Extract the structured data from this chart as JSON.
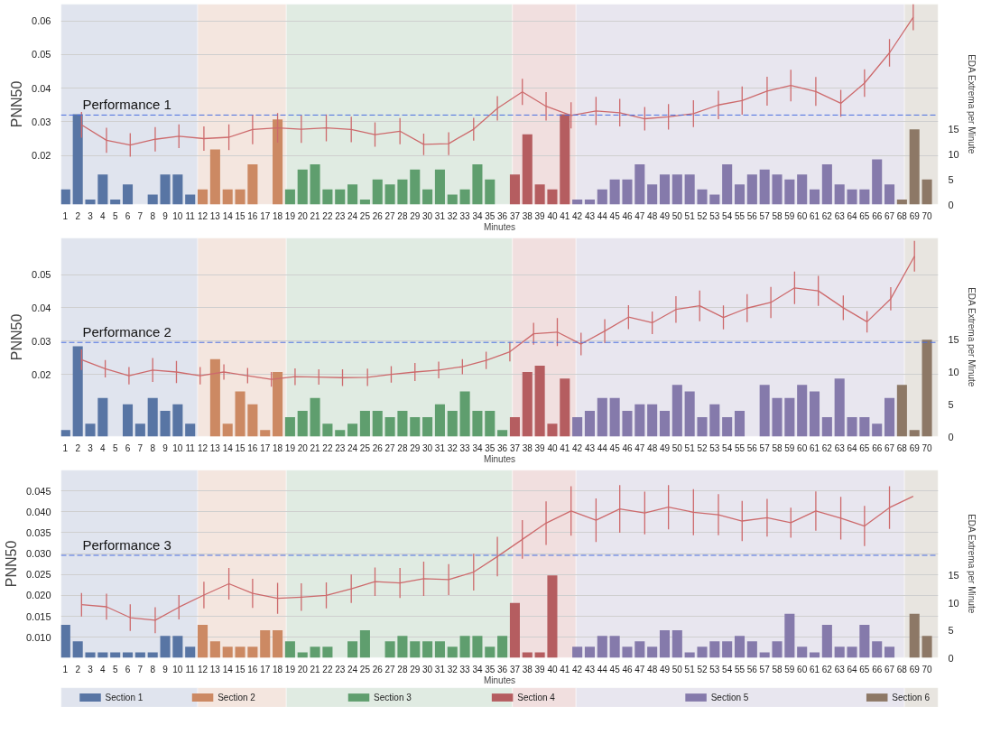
{
  "chart_data": [
    {
      "type": "bar",
      "xlabel": "Minutes",
      "ylabel": "PNN50",
      "y2label": "EDA Extrema per Minute",
      "xlim": [
        0.65,
        70.9
      ],
      "xticks": [
        1,
        2,
        3,
        4,
        5,
        6,
        7,
        8,
        9,
        10,
        11,
        12,
        13,
        14,
        15,
        16,
        17,
        18,
        19,
        20,
        21,
        22,
        23,
        24,
        25,
        26,
        27,
        28,
        29,
        30,
        31,
        32,
        33,
        34,
        35,
        36,
        37,
        38,
        39,
        40,
        41,
        42,
        43,
        44,
        45,
        46,
        47,
        48,
        49,
        50,
        51,
        52,
        53,
        54,
        55,
        56,
        57,
        58,
        59,
        60,
        61,
        62,
        63,
        64,
        65,
        66,
        67,
        68,
        69,
        70
      ],
      "ylim": [
        0.0054,
        0.065
      ],
      "yticks": [
        0.02,
        0.03,
        0.04,
        0.05,
        0.06
      ],
      "y2lim": [
        0,
        40
      ],
      "y2ticks": [
        0,
        5,
        10,
        15
      ],
      "grid": "y",
      "legend": false,
      "bands": [
        {
          "axis": "x",
          "from": 0.65,
          "to": 11.6,
          "color": "#e0e4ee"
        },
        {
          "axis": "x",
          "from": 11.6,
          "to": 18.7,
          "color": "#f4e6df"
        },
        {
          "axis": "x",
          "from": 18.7,
          "to": 36.8,
          "color": "#e0ebe2"
        },
        {
          "axis": "x",
          "from": 36.8,
          "to": 41.9,
          "color": "#f1dfdf"
        },
        {
          "axis": "x",
          "from": 41.9,
          "to": 68.2,
          "color": "#e8e6ef"
        },
        {
          "axis": "x",
          "from": 68.2,
          "to": 70.9,
          "color": "#e8e5e0"
        }
      ],
      "ref_lines": [
        {
          "axis": "y",
          "value": 0.032,
          "label": "Performance 1",
          "color": "#4a6ee0",
          "line_style": "dashed"
        }
      ],
      "series": [
        {
          "axis": "y2",
          "color": "#5875a4",
          "x": [
            1,
            2,
            3,
            4,
            5,
            6,
            7,
            8,
            9,
            10,
            11
          ],
          "values": [
            3,
            18,
            1,
            6,
            1,
            4,
            0,
            2,
            6,
            6,
            2
          ]
        },
        {
          "axis": "y2",
          "color": "#cc8963",
          "x": [
            12,
            13,
            14,
            15,
            16,
            17,
            18
          ],
          "values": [
            3,
            11,
            3,
            3,
            8,
            0,
            17
          ]
        },
        {
          "axis": "y2",
          "color": "#5f9e6e",
          "x": [
            19,
            20,
            21,
            22,
            23,
            24,
            25,
            26,
            27,
            28,
            29,
            30,
            31,
            32,
            33,
            34,
            35,
            36
          ],
          "values": [
            3,
            7,
            8,
            3,
            3,
            4,
            1,
            5,
            4,
            5,
            7,
            3,
            7,
            2,
            3,
            8,
            5,
            0
          ]
        },
        {
          "axis": "y2",
          "color": "#b55d60",
          "x": [
            37,
            38,
            39,
            40,
            41
          ],
          "values": [
            6,
            14,
            4,
            3,
            18
          ]
        },
        {
          "axis": "y2",
          "color": "#857aab",
          "x": [
            42,
            43,
            44,
            45,
            46,
            47,
            48,
            49,
            50,
            51,
            52,
            53,
            54,
            55,
            56,
            57,
            58,
            59,
            60,
            61,
            62,
            63,
            64,
            65,
            66,
            67
          ],
          "values": [
            1,
            1,
            3,
            5,
            5,
            8,
            4,
            6,
            6,
            6,
            3,
            2,
            8,
            4,
            6,
            7,
            6,
            5,
            6,
            3,
            8,
            4,
            3,
            3,
            9,
            4
          ]
        },
        {
          "axis": "y2",
          "color": "#8d7866",
          "x": [
            68,
            69,
            70
          ],
          "values": [
            1,
            15,
            5
          ]
        },
        {
          "type": "line",
          "axis": "y",
          "color": "#cd6a6c",
          "marker": "none",
          "line_style": "solid",
          "x": [
            2.3,
            4.3,
            6.2,
            8.2,
            10.1,
            12.1,
            14.1,
            16.0,
            18.0,
            19.9,
            21.9,
            23.9,
            25.8,
            27.8,
            29.7,
            31.7,
            33.7,
            35.6,
            37.6,
            39.5,
            41.5,
            43.5,
            45.4,
            47.4,
            49.3,
            51.3,
            53.3,
            55.2,
            57.2,
            59.1,
            61.1,
            63.1,
            65.0,
            67.0,
            68.9
          ],
          "values": [
            0.0291,
            0.0245,
            0.0231,
            0.0248,
            0.0257,
            0.025,
            0.0254,
            0.0277,
            0.0282,
            0.0278,
            0.0282,
            0.0277,
            0.0262,
            0.0272,
            0.0233,
            0.0235,
            0.0278,
            0.034,
            0.0389,
            0.0346,
            0.0319,
            0.0332,
            0.0327,
            0.0309,
            0.0315,
            0.0324,
            0.035,
            0.0363,
            0.0391,
            0.0408,
            0.039,
            0.0355,
            0.0415,
            0.0505,
            0.0611
          ],
          "errors": [
            0.0038,
            0.0037,
            0.0035,
            0.0036,
            0.0035,
            0.0036,
            0.0038,
            0.0044,
            0.0044,
            0.0041,
            0.004,
            0.0038,
            0.0036,
            0.0039,
            0.0032,
            0.0034,
            0.0034,
            0.0036,
            0.0039,
            0.0042,
            0.0039,
            0.0042,
            0.0041,
            0.0035,
            0.0038,
            0.004,
            0.0042,
            0.0042,
            0.0043,
            0.0047,
            0.0043,
            0.004,
            0.0041,
            0.0041,
            0.0039
          ]
        }
      ]
    },
    {
      "type": "bar",
      "xlabel": "Minutes",
      "ylabel": "PNN50",
      "y2label": "EDA Extrema per Minute",
      "xlim": [
        0.65,
        70.9
      ],
      "xticks": [
        1,
        2,
        3,
        4,
        5,
        6,
        7,
        8,
        9,
        10,
        11,
        12,
        13,
        14,
        15,
        16,
        17,
        18,
        19,
        20,
        21,
        22,
        23,
        24,
        25,
        26,
        27,
        28,
        29,
        30,
        31,
        32,
        33,
        34,
        35,
        36,
        37,
        38,
        39,
        40,
        41,
        42,
        43,
        44,
        45,
        46,
        47,
        48,
        49,
        50,
        51,
        52,
        53,
        54,
        55,
        56,
        57,
        58,
        59,
        60,
        61,
        62,
        63,
        64,
        65,
        66,
        67,
        68,
        69,
        70
      ],
      "ylim": [
        0.0013,
        0.061
      ],
      "yticks": [
        0.02,
        0.03,
        0.04,
        0.05
      ],
      "y2lim": [
        0,
        30.8
      ],
      "y2ticks": [
        0,
        5,
        10,
        15
      ],
      "grid": "y",
      "legend": false,
      "bands": [
        {
          "axis": "x",
          "from": 0.65,
          "to": 11.6,
          "color": "#e0e4ee"
        },
        {
          "axis": "x",
          "from": 11.6,
          "to": 18.7,
          "color": "#f4e6df"
        },
        {
          "axis": "x",
          "from": 18.7,
          "to": 36.8,
          "color": "#e0ebe2"
        },
        {
          "axis": "x",
          "from": 36.8,
          "to": 41.9,
          "color": "#f1dfdf"
        },
        {
          "axis": "x",
          "from": 41.9,
          "to": 68.2,
          "color": "#e8e6ef"
        },
        {
          "axis": "x",
          "from": 68.2,
          "to": 70.9,
          "color": "#e8e5e0"
        }
      ],
      "ref_lines": [
        {
          "axis": "y",
          "value": 0.0296,
          "label": "Performance 2",
          "color": "#4a6ee0",
          "line_style": "dashed"
        }
      ],
      "series": [
        {
          "axis": "y2",
          "color": "#5875a4",
          "x": [
            1,
            2,
            3,
            4,
            5,
            6,
            7,
            8,
            9,
            10,
            11
          ],
          "values": [
            1,
            14,
            2,
            6,
            0,
            5,
            2,
            6,
            4,
            5,
            2
          ]
        },
        {
          "axis": "y2",
          "color": "#cc8963",
          "x": [
            12,
            13,
            14,
            15,
            16,
            17,
            18
          ],
          "values": [
            0,
            12,
            2,
            7,
            5,
            1,
            10
          ]
        },
        {
          "axis": "y2",
          "color": "#5f9e6e",
          "x": [
            19,
            20,
            21,
            22,
            23,
            24,
            25,
            26,
            27,
            28,
            29,
            30,
            31,
            32,
            33,
            34,
            35,
            36
          ],
          "values": [
            3,
            4,
            6,
            2,
            1,
            2,
            4,
            4,
            3,
            4,
            3,
            3,
            5,
            4,
            7,
            4,
            4,
            1
          ]
        },
        {
          "axis": "y2",
          "color": "#b55d60",
          "x": [
            37,
            38,
            39,
            40,
            41
          ],
          "values": [
            3,
            10,
            11,
            2,
            9
          ]
        },
        {
          "axis": "y2",
          "color": "#857aab",
          "x": [
            42,
            43,
            44,
            45,
            46,
            47,
            48,
            49,
            50,
            51,
            52,
            53,
            54,
            55,
            56,
            57,
            58,
            59,
            60,
            61,
            62,
            63,
            64,
            65,
            66,
            67
          ],
          "values": [
            3,
            4,
            6,
            6,
            4,
            5,
            5,
            4,
            8,
            7,
            3,
            5,
            3,
            4,
            0,
            8,
            6,
            6,
            8,
            7,
            3,
            9,
            3,
            3,
            2,
            6
          ]
        },
        {
          "axis": "y2",
          "color": "#8d7866",
          "x": [
            68,
            69,
            70
          ],
          "values": [
            8,
            1,
            15
          ]
        },
        {
          "type": "line",
          "axis": "y",
          "color": "#cd6a6c",
          "marker": "none",
          "line_style": "solid",
          "x": [
            2.3,
            4.2,
            6.1,
            8.0,
            9.9,
            11.8,
            13.7,
            15.6,
            17.5,
            19.4,
            21.3,
            23.2,
            25.2,
            27.1,
            29.0,
            30.9,
            32.8,
            34.7,
            36.6,
            38.5,
            40.4,
            42.3,
            44.2,
            46.1,
            48.0,
            49.9,
            51.8,
            53.7,
            55.6,
            57.5,
            59.4,
            61.3,
            63.3,
            65.2,
            67.1,
            69.0
          ],
          "values": [
            0.0244,
            0.0217,
            0.0196,
            0.0213,
            0.0207,
            0.0196,
            0.0207,
            0.0196,
            0.0185,
            0.0193,
            0.0192,
            0.019,
            0.0191,
            0.02,
            0.0207,
            0.0213,
            0.0223,
            0.0242,
            0.0268,
            0.0322,
            0.0327,
            0.0291,
            0.033,
            0.0372,
            0.0355,
            0.0395,
            0.0406,
            0.0371,
            0.0399,
            0.0416,
            0.046,
            0.0451,
            0.04,
            0.0358,
            0.0427,
            0.0555
          ],
          "errors": [
            0.0031,
            0.0026,
            0.0026,
            0.0036,
            0.0033,
            0.0026,
            0.0023,
            0.0023,
            0.0022,
            0.0025,
            0.0023,
            0.0025,
            0.0026,
            0.0025,
            0.0027,
            0.0025,
            0.0023,
            0.0026,
            0.0029,
            0.0033,
            0.0042,
            0.0034,
            0.0036,
            0.0036,
            0.0034,
            0.004,
            0.0046,
            0.0036,
            0.0042,
            0.0047,
            0.0049,
            0.0045,
            0.0037,
            0.0032,
            0.0035,
            0.0046
          ]
        }
      ]
    },
    {
      "type": "bar",
      "xlabel": "Minutes",
      "ylabel": "PNN50",
      "y2label": "EDA Extrema per Minute",
      "xlim": [
        0.65,
        70.9
      ],
      "xticks": [
        1,
        2,
        3,
        4,
        5,
        6,
        7,
        8,
        9,
        10,
        11,
        12,
        13,
        14,
        15,
        16,
        17,
        18,
        19,
        20,
        21,
        22,
        23,
        24,
        25,
        26,
        27,
        28,
        29,
        30,
        31,
        32,
        33,
        34,
        35,
        36,
        37,
        38,
        39,
        40,
        41,
        42,
        43,
        44,
        45,
        46,
        47,
        48,
        49,
        50,
        51,
        52,
        53,
        54,
        55,
        56,
        57,
        58,
        59,
        60,
        61,
        62,
        63,
        64,
        65,
        66,
        67,
        68,
        69,
        70
      ],
      "ylim": [
        0.0051,
        0.05
      ],
      "yticks": [
        {
          "value": 0.01,
          "label": "0.010"
        },
        {
          "value": 0.015,
          "label": "0.015"
        },
        {
          "value": 0.02,
          "label": "0.020"
        },
        {
          "value": 0.025,
          "label": "0.025"
        },
        {
          "value": 0.03,
          "label": "0.030"
        },
        {
          "value": 0.035,
          "label": "0.035"
        },
        {
          "value": 0.04,
          "label": "0.040"
        },
        {
          "value": 0.045,
          "label": "0.045"
        }
      ],
      "y2lim": [
        0,
        34.2
      ],
      "y2ticks": [
        0,
        5,
        10,
        15
      ],
      "grid": "y",
      "legend": "bottom",
      "bands": [
        {
          "axis": "x",
          "from": 0.65,
          "to": 11.6,
          "color": "#e0e4ee"
        },
        {
          "axis": "x",
          "from": 11.6,
          "to": 18.7,
          "color": "#f4e6df"
        },
        {
          "axis": "x",
          "from": 18.7,
          "to": 36.8,
          "color": "#e0ebe2"
        },
        {
          "axis": "x",
          "from": 36.8,
          "to": 41.9,
          "color": "#f1dfdf"
        },
        {
          "axis": "x",
          "from": 41.9,
          "to": 68.2,
          "color": "#e8e6ef"
        },
        {
          "axis": "x",
          "from": 68.2,
          "to": 70.9,
          "color": "#e8e5e0"
        }
      ],
      "ref_lines": [
        {
          "axis": "y",
          "value": 0.0296,
          "label": "Performance 3",
          "color": "#4a6ee0",
          "line_style": "dashed"
        }
      ],
      "series": [
        {
          "axis": "y2",
          "name": "Section 1",
          "color": "#5875a4",
          "x": [
            1,
            2,
            3,
            4,
            5,
            6,
            7,
            8,
            9,
            10,
            11
          ],
          "values": [
            6,
            3,
            1,
            1,
            1,
            1,
            1,
            1,
            4,
            4,
            2
          ]
        },
        {
          "axis": "y2",
          "name": "Section 2",
          "color": "#cc8963",
          "x": [
            12,
            13,
            14,
            15,
            16,
            17,
            18
          ],
          "values": [
            6,
            3,
            2,
            2,
            2,
            5,
            5
          ]
        },
        {
          "axis": "y2",
          "name": "Section 3",
          "color": "#5f9e6e",
          "x": [
            19,
            20,
            21,
            22,
            23,
            24,
            25,
            26,
            27,
            28,
            29,
            30,
            31,
            32,
            33,
            34,
            35,
            36
          ],
          "values": [
            3,
            1,
            2,
            2,
            0,
            3,
            5,
            0,
            3,
            4,
            3,
            3,
            3,
            2,
            4,
            4,
            2,
            4
          ]
        },
        {
          "axis": "y2",
          "name": "Section 4",
          "color": "#b55d60",
          "x": [
            37,
            38,
            39,
            40,
            41
          ],
          "values": [
            10,
            1,
            1,
            15,
            0
          ]
        },
        {
          "axis": "y2",
          "name": "Section 5",
          "color": "#857aab",
          "x": [
            42,
            43,
            44,
            45,
            46,
            47,
            48,
            49,
            50,
            51,
            52,
            53,
            54,
            55,
            56,
            57,
            58,
            59,
            60,
            61,
            62,
            63,
            64,
            65,
            66,
            67
          ],
          "values": [
            2,
            2,
            4,
            4,
            2,
            3,
            2,
            5,
            5,
            1,
            2,
            3,
            3,
            4,
            3,
            1,
            3,
            8,
            2,
            1,
            6,
            2,
            2,
            6,
            3,
            2
          ]
        },
        {
          "axis": "y2",
          "name": "Section 6",
          "color": "#8d7866",
          "x": [
            68,
            69,
            70
          ],
          "values": [
            0,
            8,
            4
          ]
        },
        {
          "type": "line",
          "axis": "y",
          "color": "#cd6a6c",
          "marker": "none",
          "line_style": "solid",
          "x": [
            2.3,
            4.3,
            6.2,
            8.2,
            10.1,
            12.1,
            14.1,
            16.0,
            18.0,
            19.9,
            21.9,
            23.9,
            25.8,
            27.8,
            29.7,
            31.7,
            33.7,
            35.6,
            37.6,
            39.5,
            41.5,
            43.5,
            45.4,
            47.4,
            49.3,
            51.3,
            53.3,
            55.2,
            57.2,
            59.1,
            61.1,
            63.1,
            65.0,
            67.0,
            68.9
          ],
          "values": [
            0.0178,
            0.0173,
            0.0147,
            0.0141,
            0.0172,
            0.0201,
            0.0228,
            0.0205,
            0.0193,
            0.0196,
            0.02,
            0.0216,
            0.0233,
            0.023,
            0.024,
            0.0238,
            0.0256,
            0.0293,
            0.0334,
            0.0373,
            0.0402,
            0.038,
            0.0407,
            0.0397,
            0.0411,
            0.0399,
            0.0393,
            0.0378,
            0.0386,
            0.0374,
            0.0402,
            0.0385,
            0.0366,
            0.041,
            0.0437
          ],
          "errors": [
            0.0028,
            0.0031,
            0.0032,
            0.0031,
            0.0029,
            0.0032,
            0.0038,
            0.0035,
            0.0037,
            0.0033,
            0.0031,
            0.0034,
            0.0034,
            0.0036,
            0.0041,
            0.0037,
            0.0044,
            0.0047,
            0.0046,
            0.0052,
            0.0059,
            0.0052,
            0.0057,
            0.0051,
            0.0053,
            0.0055,
            0.0049,
            0.0048,
            0.0045,
            0.0036,
            0.0047,
            0.0051,
            0.0048,
            0.0051,
            null
          ]
        }
      ]
    }
  ]
}
